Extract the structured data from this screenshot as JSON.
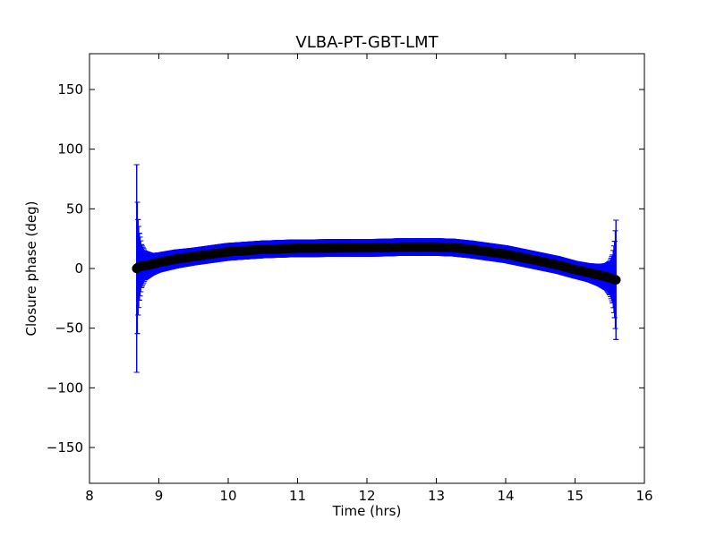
{
  "chart_data": {
    "type": "scatter",
    "title": "VLBA-PT-GBT-LMT",
    "xlabel": "Time (hrs)",
    "ylabel": "Closure phase (deg)",
    "xlim": [
      8,
      16
    ],
    "ylim": [
      -180,
      180
    ],
    "xticks": [
      8,
      9,
      10,
      11,
      12,
      13,
      14,
      15,
      16
    ],
    "xtick_labels": [
      "8",
      "9",
      "10",
      "11",
      "12",
      "13",
      "14",
      "15",
      "16"
    ],
    "yticks": [
      -150,
      -100,
      -50,
      0,
      50,
      100,
      150
    ],
    "ytick_labels": [
      "−150",
      "−100",
      "−50",
      "0",
      "50",
      "100",
      "150"
    ],
    "grid": false,
    "colors": {
      "errorbar": "#0000ff",
      "marker": "#000000",
      "marker_edge": "#000000"
    },
    "series": [
      {
        "x": [
          8.68,
          8.69,
          8.7,
          8.72,
          8.75,
          8.8,
          8.9,
          9.0,
          9.25,
          9.5,
          9.75,
          10.0,
          10.25,
          10.5,
          10.75,
          11.0,
          11.25,
          11.5,
          11.75,
          12.0,
          12.25,
          12.5,
          12.75,
          13.0,
          13.25,
          13.5,
          13.75,
          14.0,
          14.25,
          14.5,
          14.75,
          15.0,
          15.2,
          15.35,
          15.45,
          15.5,
          15.54,
          15.57,
          15.59
        ],
        "y": [
          0,
          0.5,
          1,
          1.5,
          2,
          2.5,
          3.5,
          5,
          8,
          10,
          12,
          14,
          15,
          16,
          16.5,
          17,
          17,
          17.2,
          17.3,
          17.3,
          17.5,
          18,
          18,
          18,
          17.5,
          16,
          14,
          12,
          9,
          6,
          3,
          -1,
          -3.5,
          -5.5,
          -7,
          -8,
          -8.7,
          -9.2,
          -9.5
        ],
        "yerr": [
          87,
          55,
          40,
          28,
          18,
          12,
          9,
          8,
          7.5,
          7,
          7,
          7,
          7,
          7,
          7,
          7,
          7,
          7,
          7,
          7,
          7,
          7,
          7,
          7,
          7,
          7,
          7,
          7,
          7,
          7,
          7,
          7,
          7.5,
          9,
          11,
          14,
          20,
          32,
          50
        ]
      }
    ]
  }
}
